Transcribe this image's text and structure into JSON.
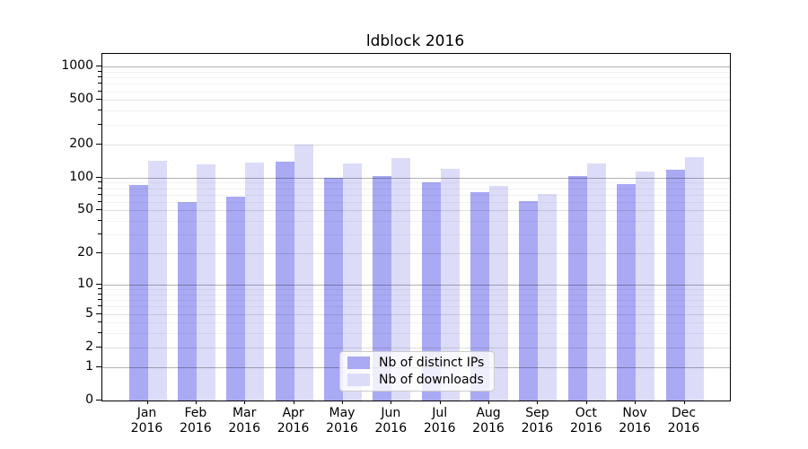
{
  "title": "ldblock 2016",
  "colors": {
    "bar_distinct_ips": "#a9a9f4",
    "bar_downloads": "#dcdcf9",
    "grid_major": "rgba(0,0,0,0.30)",
    "grid_sub": "rgba(0,0,0,0.12)",
    "grid_minor": "rgba(0,0,0,0.05)",
    "axis": "#000000",
    "legend_border": "#cccccc",
    "legend_bg": "rgba(255,255,255,0.8)"
  },
  "chart_data": {
    "type": "bar",
    "title": "ldblock 2016",
    "categories": [
      "Jan 2016",
      "Feb 2016",
      "Mar 2016",
      "Apr 2016",
      "May 2016",
      "Jun 2016",
      "Jul 2016",
      "Aug 2016",
      "Sep 2016",
      "Oct 2016",
      "Nov 2016",
      "Dec 2016"
    ],
    "months": [
      "Jan",
      "Feb",
      "Mar",
      "Apr",
      "May",
      "Jun",
      "Jul",
      "Aug",
      "Sep",
      "Oct",
      "Nov",
      "Dec"
    ],
    "year": "2016",
    "series": [
      {
        "name": "Nb of distinct IPs",
        "values": [
          86,
          60,
          67,
          138,
          100,
          103,
          90,
          73,
          61,
          103,
          87,
          118
        ]
      },
      {
        "name": "Nb of downloads",
        "values": [
          141,
          131,
          136,
          198,
          134,
          150,
          119,
          84,
          71,
          134,
          113,
          154
        ]
      }
    ],
    "xlabel": "",
    "ylabel": "",
    "yscale": "log1p",
    "y_ticks_labeled": [
      0,
      1,
      2,
      5,
      10,
      20,
      50,
      100,
      200,
      500,
      1000
    ],
    "y_ticks_minor": [
      3,
      4,
      6,
      7,
      8,
      9,
      30,
      40,
      60,
      70,
      80,
      90,
      300,
      400,
      600,
      700,
      800,
      900
    ],
    "ylim": [
      0,
      1300
    ],
    "grid": true,
    "legend_position": "lower-center"
  }
}
